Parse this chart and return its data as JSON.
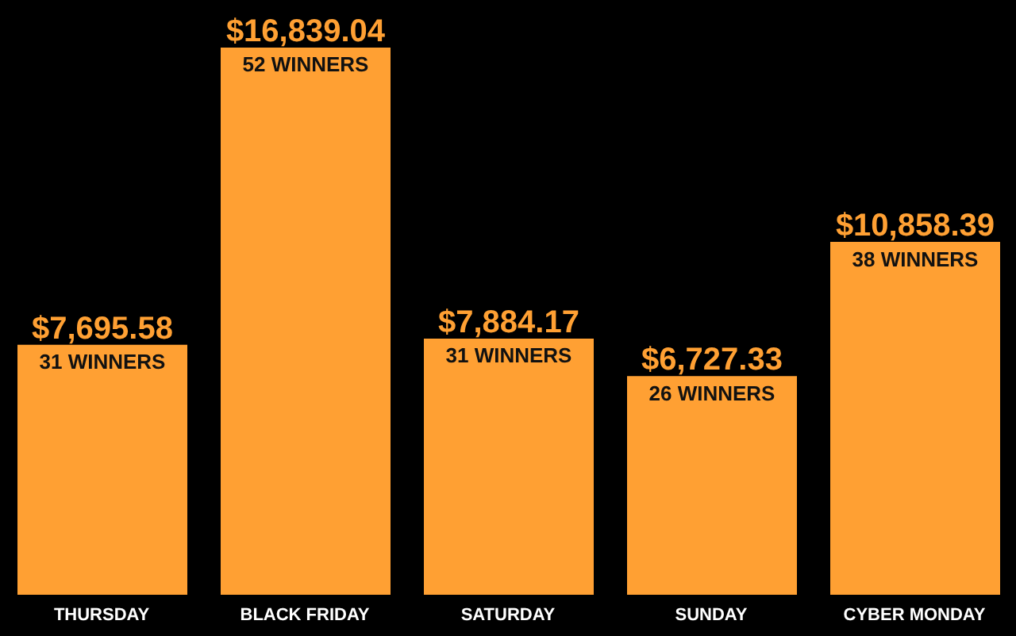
{
  "chart_data": {
    "type": "bar",
    "categories": [
      "THURSDAY",
      "BLACK FRIDAY",
      "SATURDAY",
      "SUNDAY",
      "CYBER MONDAY"
    ],
    "values": [
      7695.58,
      16839.04,
      7884.17,
      6727.33,
      10858.39
    ],
    "color": "#ffa033",
    "value_labels": [
      "$7,695.58",
      "$16,839.04",
      "$7,884.17",
      "$6,727.33",
      "$10,858.39"
    ],
    "annotations": [
      "31 WINNERS",
      "52 WINNERS",
      "31 WINNERS",
      "26 WINNERS",
      "38 WINNERS"
    ],
    "grid": false,
    "legend": false
  }
}
